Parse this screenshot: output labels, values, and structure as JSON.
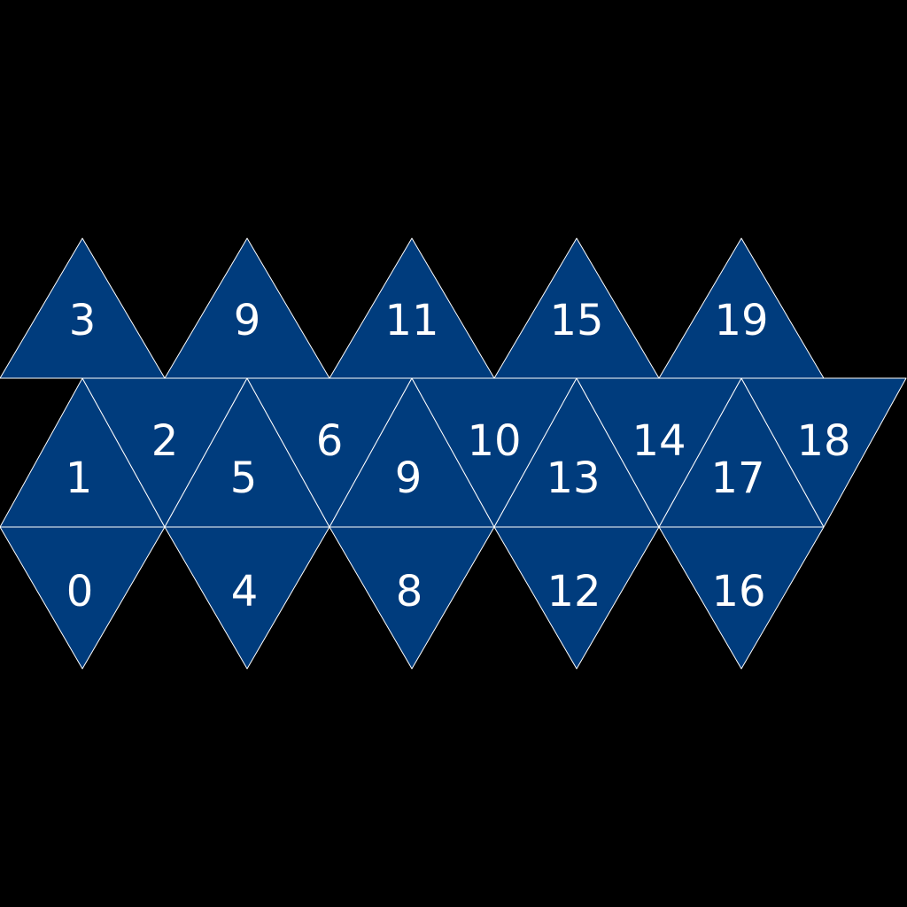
{
  "colors": {
    "background": "#000000",
    "face_fill": "#003c7d",
    "edge": "#ffffff",
    "label": "#ffffff"
  },
  "net": {
    "top_row": [
      "3",
      "9",
      "11",
      "15",
      "19"
    ],
    "middle_row": [
      "1",
      "2",
      "5",
      "6",
      "9",
      "10",
      "13",
      "14",
      "17",
      "18"
    ],
    "bottom_row": [
      "0",
      "4",
      "8",
      "12",
      "16"
    ]
  }
}
